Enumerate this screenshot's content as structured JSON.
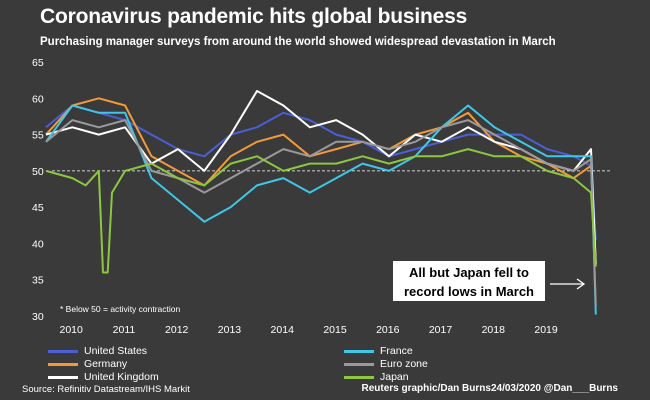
{
  "header": {
    "title": "Coronavirus pandemic hits global business",
    "subtitle": "Purchasing manager surveys from around the world showed widespread devastation in March"
  },
  "annotations": {
    "threshold_note": "* Below 50 = activity contraction",
    "callout": "All but Japan fell to record lows in March"
  },
  "footer": {
    "source": "Source: Refinitiv Datastream/IHS Markit",
    "credit": "Reuters graphic/Dan Burns24/03/2020 @Dan___Burns"
  },
  "chart_data": {
    "type": "line",
    "title": "Coronavirus pandemic hits global business",
    "subtitle": "Purchasing manager surveys from around the world showed widespread devastation in March",
    "xlabel": "",
    "ylabel": "",
    "xlim": [
      2009.75,
      2020.25
    ],
    "ylim": [
      30,
      65
    ],
    "yticks": [
      30,
      35,
      40,
      45,
      50,
      55,
      60,
      65
    ],
    "xticks": [
      2010,
      2011,
      2012,
      2013,
      2014,
      2015,
      2016,
      2017,
      2018,
      2019
    ],
    "reference_line": 50,
    "grid": false,
    "legend_position": "bottom",
    "series": [
      {
        "name": "United States",
        "color": "#4a5fd6",
        "x": [
          2009.75,
          2010.25,
          2010.75,
          2011.25,
          2011.75,
          2012.25,
          2012.75,
          2013.25,
          2013.75,
          2014.25,
          2014.75,
          2015.25,
          2015.75,
          2016.25,
          2016.75,
          2017.25,
          2017.75,
          2018.25,
          2018.75,
          2019.25,
          2019.75,
          2020.08,
          2020.17
        ],
        "y": [
          56,
          59,
          58,
          57,
          55,
          53,
          52,
          55,
          56,
          58,
          57,
          55,
          54,
          52,
          53,
          54,
          55,
          55,
          55,
          53,
          52,
          50.7,
          40.5
        ]
      },
      {
        "name": "Germany",
        "color": "#f29a3a",
        "x": [
          2009.75,
          2010.25,
          2010.75,
          2011.25,
          2011.75,
          2012.25,
          2012.75,
          2013.25,
          2013.75,
          2014.25,
          2014.75,
          2015.25,
          2015.75,
          2016.25,
          2016.75,
          2017.25,
          2017.75,
          2018.25,
          2018.75,
          2019.25,
          2019.75,
          2020.08,
          2020.17
        ],
        "y": [
          55,
          59,
          60,
          59,
          52,
          50,
          48,
          52,
          54,
          55,
          52,
          53,
          54,
          53,
          55,
          56,
          58,
          54,
          52,
          51,
          49,
          50.7,
          37.2
        ]
      },
      {
        "name": "United Kingdom",
        "color": "#ffffff",
        "x": [
          2009.75,
          2010.25,
          2010.75,
          2011.25,
          2011.75,
          2012.25,
          2012.75,
          2013.25,
          2013.75,
          2014.25,
          2014.75,
          2015.25,
          2015.75,
          2016.25,
          2016.75,
          2017.25,
          2017.75,
          2018.25,
          2018.75,
          2019.25,
          2019.75,
          2020.08,
          2020.17
        ],
        "y": [
          55,
          56,
          55,
          56,
          51,
          53,
          50,
          55,
          61,
          59,
          56,
          57,
          55,
          52,
          55,
          54,
          56,
          54,
          53,
          51,
          50,
          53,
          37.1
        ]
      },
      {
        "name": "France",
        "color": "#3fc7e8",
        "x": [
          2009.75,
          2010.25,
          2010.75,
          2011.25,
          2011.75,
          2012.25,
          2012.75,
          2013.25,
          2013.75,
          2014.25,
          2014.75,
          2015.25,
          2015.75,
          2016.25,
          2016.75,
          2017.25,
          2017.75,
          2018.25,
          2018.75,
          2019.25,
          2019.75,
          2020.08,
          2020.17
        ],
        "y": [
          54,
          59,
          58,
          58,
          49,
          46,
          43,
          45,
          48,
          49,
          47,
          49,
          51,
          50,
          52,
          56,
          59,
          56,
          54,
          52,
          52,
          52,
          30.2
        ]
      },
      {
        "name": "Euro zone",
        "color": "#9a9a9a",
        "x": [
          2009.75,
          2010.25,
          2010.75,
          2011.25,
          2011.75,
          2012.25,
          2012.75,
          2013.25,
          2013.75,
          2014.25,
          2014.75,
          2015.25,
          2015.75,
          2016.25,
          2016.75,
          2017.25,
          2017.75,
          2018.25,
          2018.75,
          2019.25,
          2019.75,
          2020.08,
          2020.17
        ],
        "y": [
          54,
          57,
          56,
          57,
          50,
          49,
          47,
          49,
          51,
          53,
          52,
          54,
          54,
          53,
          54,
          56,
          57,
          55,
          53,
          51,
          50,
          51.6,
          31.4
        ]
      },
      {
        "name": "Japan",
        "color": "#8dc63f",
        "x": [
          2009.75,
          2010.25,
          2010.5,
          2010.75,
          2010.83,
          2010.92,
          2011.0,
          2011.25,
          2011.75,
          2012.25,
          2012.75,
          2013.25,
          2013.75,
          2014.25,
          2014.75,
          2015.25,
          2015.75,
          2016.25,
          2016.75,
          2017.25,
          2017.75,
          2018.25,
          2018.75,
          2019.25,
          2019.75,
          2020.08,
          2020.17
        ],
        "y": [
          50,
          49,
          48,
          50,
          36,
          36,
          47,
          50,
          51,
          49,
          48,
          51,
          52,
          50,
          51,
          51,
          52,
          51,
          52,
          52,
          53,
          52,
          52,
          50,
          49,
          47,
          36.8
        ]
      }
    ]
  }
}
